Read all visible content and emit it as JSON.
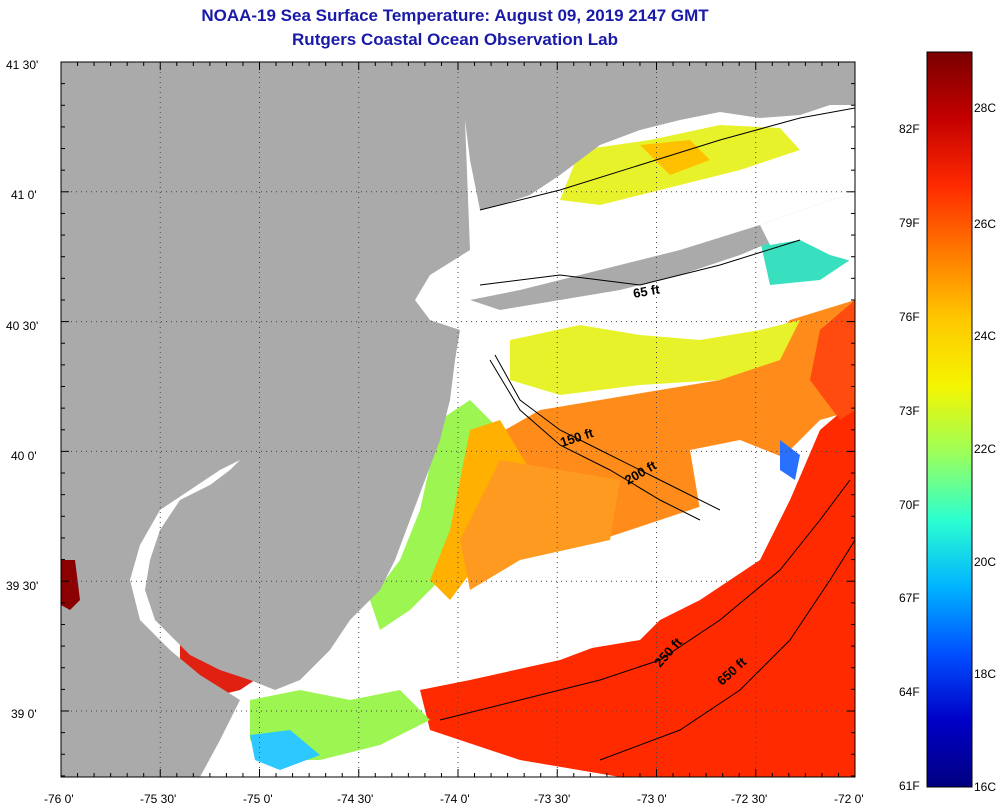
{
  "title_line1": "NOAA-19 Sea Surface Temperature:  August 09, 2019 2147 GMT",
  "title_line2": "Rutgers Coastal Ocean Observation Lab",
  "map": {
    "lon_labels": [
      "-76 0'",
      "-75 30'",
      "-75 0'",
      "-74 30'",
      "-74 0'",
      "-73 30'",
      "-73 0'",
      "-72 30'",
      "-72 0'"
    ],
    "lat_labels": [
      "41 30'",
      "41 0'",
      "40 30'",
      "40 0'",
      "39 30'",
      "39 0'"
    ],
    "depth_labels": [
      "65 ft",
      "150 ft",
      "200 ft",
      "250 ft",
      "650 ft"
    ],
    "colors": {
      "land": "#aaaaaa",
      "cloud": "#ffffff",
      "frame": "#000000"
    }
  },
  "colorbar": {
    "fahrenheit_labels": [
      "82F",
      "79F",
      "76F",
      "73F",
      "70F",
      "67F",
      "64F",
      "61F"
    ],
    "celsius_labels": [
      "28C",
      "26C",
      "24C",
      "22C",
      "20C",
      "18C",
      "16C"
    ],
    "gradient_colors": [
      "#7a0000",
      "#c40000",
      "#ff2a00",
      "#ff7a00",
      "#ffc800",
      "#f5f500",
      "#9cff5a",
      "#2cffd0",
      "#00b4ff",
      "#0050ff",
      "#0000c8",
      "#000080"
    ]
  }
}
